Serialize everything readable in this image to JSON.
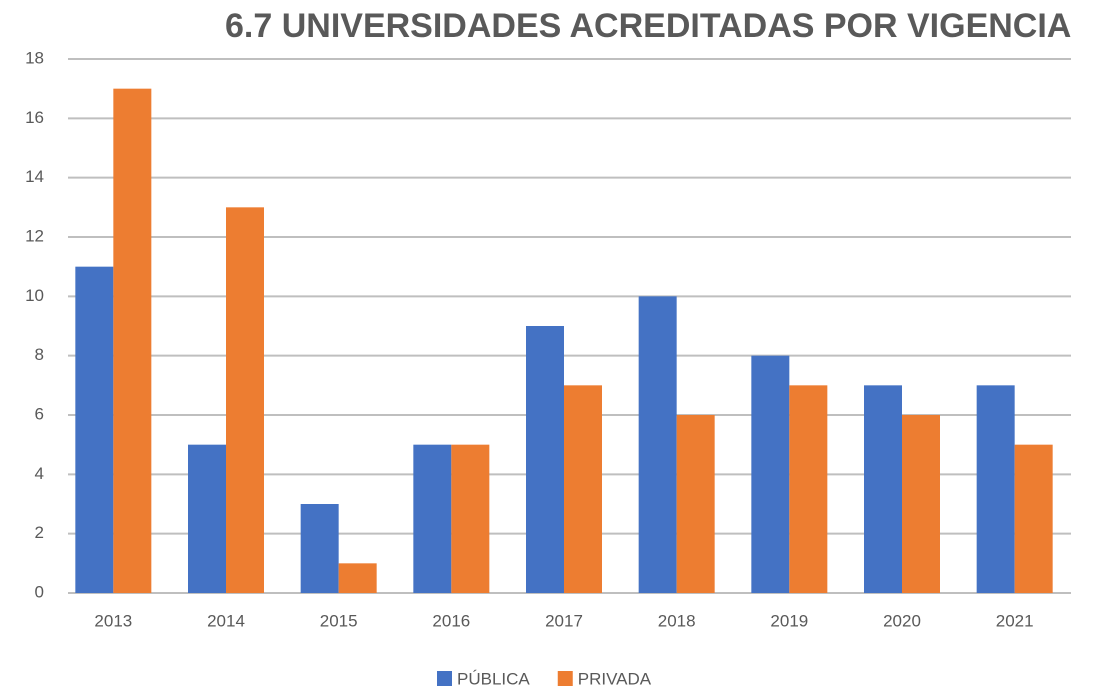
{
  "chart_data": {
    "type": "bar",
    "title": "6.7 UNIVERSIDADES ACREDITADAS POR VIGENCIA",
    "categories": [
      "2013",
      "2014",
      "2015",
      "2016",
      "2017",
      "2018",
      "2019",
      "2020",
      "2021"
    ],
    "series": [
      {
        "name": "PÚBLICA",
        "color": "#4472c4",
        "values": [
          11,
          5,
          3,
          5,
          9,
          10,
          8,
          7,
          7
        ]
      },
      {
        "name": "PRIVADA",
        "color": "#ed7d31",
        "values": [
          17,
          13,
          1,
          5,
          7,
          6,
          7,
          6,
          5
        ]
      }
    ],
    "ylim": [
      0,
      18
    ],
    "yticks": [
      0,
      2,
      4,
      6,
      8,
      10,
      12,
      14,
      16,
      18
    ],
    "grid": true,
    "legend": "bottom"
  }
}
